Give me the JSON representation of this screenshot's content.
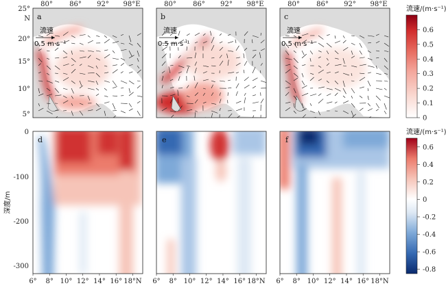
{
  "chart_data": [
    {
      "type": "heatmap",
      "panels": [
        "a",
        "b",
        "c"
      ],
      "description": "Bay of Bengal surface current speed with vectors",
      "x_ticks": [
        "80°",
        "86°",
        "92°",
        "98°E"
      ],
      "y_ticks": [
        "25°",
        "20°",
        "15°",
        "10°",
        "5°"
      ],
      "y_unit": "N",
      "reference_arrow": {
        "label_1": "流速",
        "label_2": "0.5 m·s⁻¹"
      },
      "colorbar": {
        "label": "流速/(m·s⁻¹)",
        "range": [
          0,
          0.7
        ],
        "ticks": [
          "0.6",
          "0.5",
          "0.4",
          "0.3",
          "0.2",
          "0.1",
          "0"
        ],
        "colors": [
          "#ffffff",
          "#fadbd4",
          "#f4a79c",
          "#e76b5f",
          "#d02c2c",
          "#8e0013"
        ]
      }
    },
    {
      "type": "heatmap",
      "panels": [
        "d",
        "e",
        "f"
      ],
      "x_ticks": [
        "6°",
        "8°",
        "10°",
        "12°",
        "14°",
        "16°",
        "18°N"
      ],
      "y_ticks": [
        "0",
        "-100",
        "-200",
        "-300"
      ],
      "ylabel": "深度/m",
      "ylim": [
        -320,
        0
      ],
      "xlim": [
        6,
        19.2
      ],
      "colorbar": {
        "label": "流速/(m·s⁻¹)",
        "range": [
          -0.85,
          0.7
        ],
        "ticks": [
          "0.6",
          "0.4",
          "0.2",
          "0",
          "-0.2",
          "-0.4",
          "-0.6",
          "-0.8"
        ],
        "colors_neg": [
          "#ffffff",
          "#c9dbef",
          "#7ea9d8",
          "#3569b2",
          "#0a2a6e"
        ],
        "colors_pos": [
          "#ffffff",
          "#f6c4b8",
          "#ec7b6c",
          "#d03030",
          "#a00018"
        ]
      }
    }
  ]
}
